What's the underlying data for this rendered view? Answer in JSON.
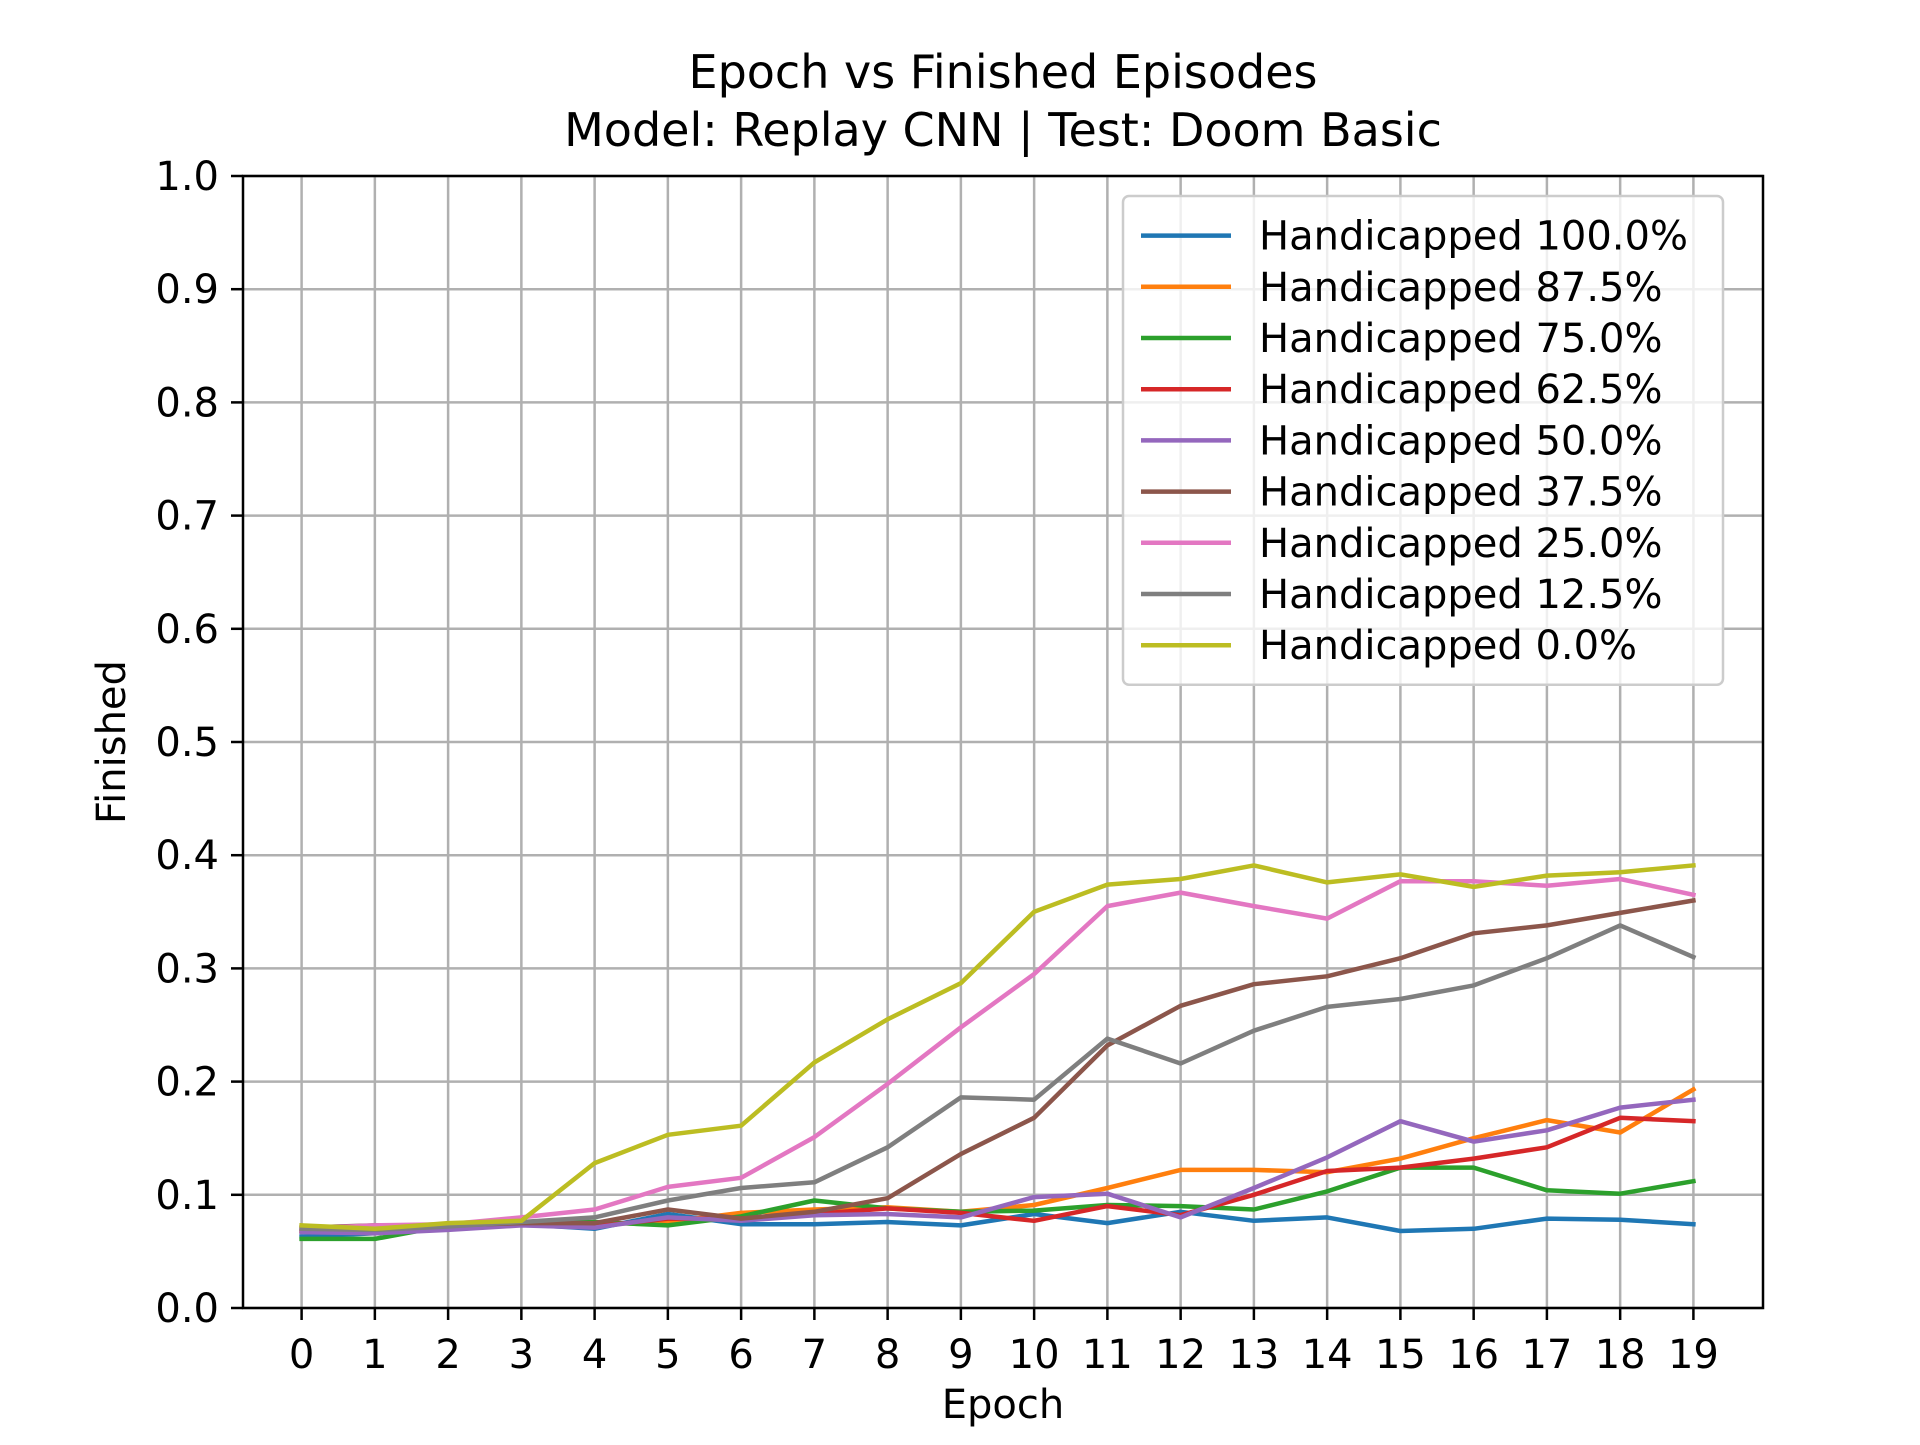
{
  "chart_data": {
    "type": "line",
    "title": "Epoch vs Finished Episodes",
    "subtitle": "Model: Replay CNN | Test: Doom Basic",
    "xlabel": "Epoch",
    "ylabel": "Finished",
    "xlim": [
      -0.8,
      19.95
    ],
    "ylim": [
      0.0,
      1.0
    ],
    "grid": true,
    "legend_position": "top-right",
    "x": [
      0,
      1,
      2,
      3,
      4,
      5,
      6,
      7,
      8,
      9,
      10,
      11,
      12,
      13,
      14,
      15,
      16,
      17,
      18,
      19
    ],
    "x_tick_labels": [
      "0",
      "1",
      "2",
      "3",
      "4",
      "5",
      "6",
      "7",
      "8",
      "9",
      "10",
      "11",
      "12",
      "13",
      "14",
      "15",
      "16",
      "17",
      "18",
      "19"
    ],
    "y_ticks": [
      0.0,
      0.1,
      0.2,
      0.3,
      0.4,
      0.5,
      0.6,
      0.7,
      0.8,
      0.9,
      1.0
    ],
    "y_tick_labels": [
      "0.0",
      "0.1",
      "0.2",
      "0.3",
      "0.4",
      "0.5",
      "0.6",
      "0.7",
      "0.8",
      "0.9",
      "1.0"
    ],
    "series": [
      {
        "name": "Handicapped 100.0%",
        "color": "#1f77b4",
        "values": [
          0.063,
          0.066,
          0.07,
          0.074,
          0.07,
          0.083,
          0.074,
          0.074,
          0.076,
          0.073,
          0.083,
          0.075,
          0.085,
          0.077,
          0.08,
          0.068,
          0.07,
          0.079,
          0.078,
          0.074
        ]
      },
      {
        "name": "Handicapped 87.5%",
        "color": "#ff7f0e",
        "values": [
          0.068,
          0.066,
          0.072,
          0.076,
          0.074,
          0.076,
          0.084,
          0.087,
          0.089,
          0.085,
          0.091,
          0.106,
          0.122,
          0.122,
          0.12,
          0.132,
          0.15,
          0.166,
          0.155,
          0.193
        ]
      },
      {
        "name": "Handicapped 75.0%",
        "color": "#2ca02c",
        "values": [
          0.061,
          0.061,
          0.073,
          0.075,
          0.076,
          0.073,
          0.081,
          0.095,
          0.088,
          0.085,
          0.086,
          0.091,
          0.09,
          0.087,
          0.103,
          0.124,
          0.124,
          0.104,
          0.101,
          0.112
        ]
      },
      {
        "name": "Handicapped 62.5%",
        "color": "#d62728",
        "values": [
          0.068,
          0.069,
          0.071,
          0.075,
          0.072,
          0.079,
          0.079,
          0.083,
          0.088,
          0.084,
          0.077,
          0.09,
          0.082,
          0.1,
          0.121,
          0.124,
          0.132,
          0.142,
          0.168,
          0.165
        ]
      },
      {
        "name": "Handicapped 50.0%",
        "color": "#9467bd",
        "values": [
          0.067,
          0.066,
          0.069,
          0.073,
          0.071,
          0.08,
          0.077,
          0.082,
          0.083,
          0.08,
          0.098,
          0.101,
          0.08,
          0.106,
          0.133,
          0.165,
          0.147,
          0.157,
          0.177,
          0.184
        ]
      },
      {
        "name": "Handicapped 37.5%",
        "color": "#8c564b",
        "values": [
          0.071,
          0.073,
          0.073,
          0.075,
          0.075,
          0.087,
          0.079,
          0.085,
          0.097,
          0.136,
          0.168,
          0.232,
          0.267,
          0.286,
          0.293,
          0.309,
          0.331,
          0.338,
          0.349,
          0.36
        ]
      },
      {
        "name": "Handicapped 25.0%",
        "color": "#e377c2",
        "values": [
          0.07,
          0.073,
          0.074,
          0.08,
          0.087,
          0.107,
          0.115,
          0.151,
          0.198,
          0.248,
          0.295,
          0.355,
          0.367,
          0.355,
          0.344,
          0.377,
          0.377,
          0.373,
          0.379,
          0.365
        ]
      },
      {
        "name": "Handicapped 12.5%",
        "color": "#7f7f7f",
        "values": [
          0.07,
          0.069,
          0.072,
          0.076,
          0.08,
          0.095,
          0.106,
          0.111,
          0.142,
          0.186,
          0.184,
          0.238,
          0.216,
          0.245,
          0.266,
          0.273,
          0.285,
          0.309,
          0.338,
          0.31
        ]
      },
      {
        "name": "Handicapped 0.0%",
        "color": "#bcbd22",
        "values": [
          0.073,
          0.07,
          0.075,
          0.077,
          0.128,
          0.153,
          0.161,
          0.217,
          0.255,
          0.287,
          0.35,
          0.374,
          0.379,
          0.391,
          0.376,
          0.383,
          0.372,
          0.382,
          0.385,
          0.391
        ]
      }
    ]
  }
}
